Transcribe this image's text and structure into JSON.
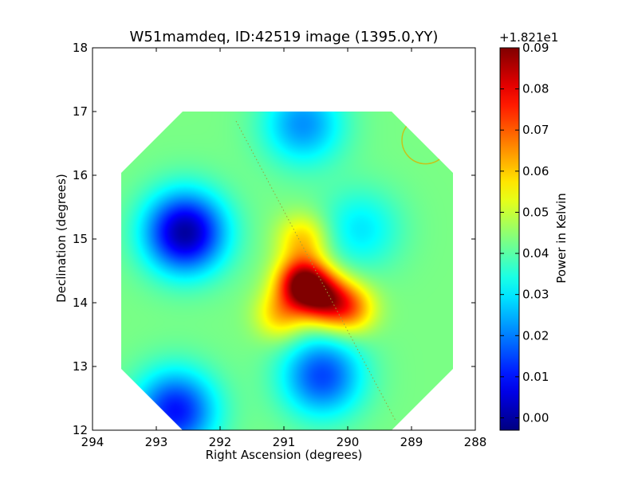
{
  "chart_data": {
    "type": "heatmap",
    "title": "W51mamdeq, ID:42519 image (1395.0,YY)",
    "xlabel": "Right Ascension (degrees)",
    "ylabel": "Declination (degrees)",
    "xlim": [
      294,
      288
    ],
    "ylim": [
      12,
      18
    ],
    "x_ticks": [
      294,
      293,
      292,
      291,
      290,
      289,
      288
    ],
    "y_ticks": [
      12,
      13,
      14,
      15,
      16,
      17,
      18
    ],
    "x_tick_labels": [
      "294",
      "293",
      "292",
      "291",
      "290",
      "289",
      "288"
    ],
    "y_tick_labels": [
      "12",
      "13",
      "14",
      "15",
      "16",
      "17",
      "18"
    ],
    "colorbar": {
      "label": "Power in Kelvin",
      "offset_label": "+1.821e1",
      "colormap": "jet",
      "range": [
        -0.003,
        0.09
      ],
      "ticks": [
        0.0,
        0.01,
        0.02,
        0.03,
        0.04,
        0.05,
        0.06,
        0.07,
        0.08,
        0.09
      ],
      "tick_labels": [
        "0.00",
        "0.01",
        "0.02",
        "0.03",
        "0.04",
        "0.05",
        "0.06",
        "0.07",
        "0.08",
        "0.09"
      ]
    },
    "background_level": 0.043,
    "features": [
      {
        "kind": "peak",
        "ra": 290.7,
        "dec": 14.3,
        "value": 0.09
      },
      {
        "kind": "peak",
        "ra": 290.35,
        "dec": 14.05,
        "value": 0.075
      },
      {
        "kind": "peak",
        "ra": 289.95,
        "dec": 13.9,
        "value": 0.065
      },
      {
        "kind": "peak",
        "ra": 290.7,
        "dec": 15.0,
        "value": 0.06
      },
      {
        "kind": "peak",
        "ra": 291.05,
        "dec": 13.8,
        "value": 0.06
      },
      {
        "kind": "minimum",
        "ra": 292.55,
        "dec": 15.1,
        "value": 0.0
      },
      {
        "kind": "minimum",
        "ra": 292.7,
        "dec": 12.3,
        "value": 0.01
      },
      {
        "kind": "minimum",
        "ra": 290.4,
        "dec": 12.85,
        "value": 0.015
      },
      {
        "kind": "minimum",
        "ra": 289.8,
        "dec": 15.15,
        "value": 0.03
      },
      {
        "kind": "minimum",
        "ra": 290.7,
        "dec": 16.8,
        "value": 0.022
      }
    ],
    "beam_circle": {
      "ra": 288.78,
      "dec": 16.55,
      "radius_deg": 0.37
    },
    "galactic_plane_line": [
      [
        291.75,
        16.85
      ],
      [
        289.25,
        12.15
      ]
    ],
    "map_footprint_ra_range": [
      293.55,
      288.35
    ],
    "map_footprint_dec_range": [
      12.0,
      17.0
    ]
  }
}
